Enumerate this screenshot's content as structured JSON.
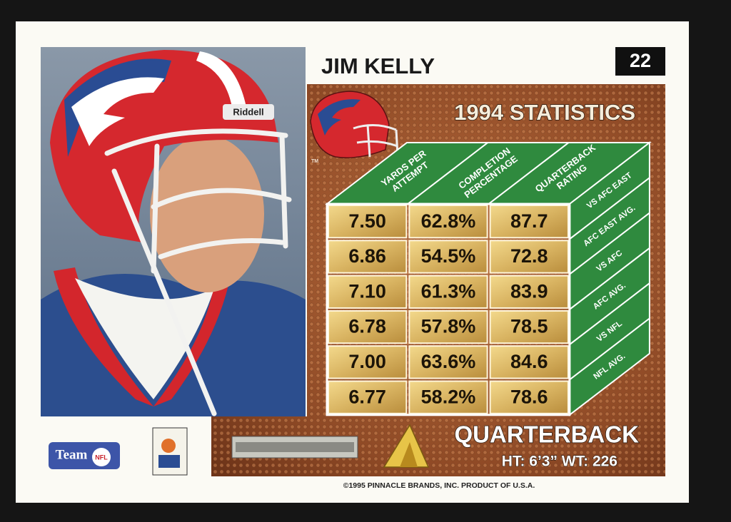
{
  "card": {
    "name": "JIM KELLY",
    "number": "22",
    "stats_title": "1994 STATISTICS",
    "helmet_brand": "Riddell",
    "tm": "TM",
    "position": "QUARTERBACK",
    "height_weight": "HT: 6’3” WT: 226",
    "copyright": "©1995 PINNACLE BRANDS, INC. PRODUCT OF U.S.A.",
    "team_logo": {
      "team": "Team",
      "league": "NFL"
    }
  },
  "table": {
    "columns": [
      [
        "YARDS PER",
        "ATTEMPT"
      ],
      [
        "COMPLETION",
        "PERCENTAGE"
      ],
      [
        "QUARTERBACK",
        "RATING"
      ]
    ],
    "rows": [
      {
        "label": "VS AFC EAST",
        "cells": [
          "7.50",
          "62.8%",
          "87.7"
        ]
      },
      {
        "label": "AFC EAST AVG.",
        "cells": [
          "6.86",
          "54.5%",
          "72.8"
        ]
      },
      {
        "label": "VS AFC",
        "cells": [
          "7.10",
          "61.3%",
          "83.9"
        ]
      },
      {
        "label": "AFC AVG.",
        "cells": [
          "6.78",
          "57.8%",
          "78.5"
        ]
      },
      {
        "label": "VS NFL",
        "cells": [
          "7.00",
          "63.6%",
          "84.6"
        ]
      },
      {
        "label": "NFL AVG.",
        "cells": [
          "6.77",
          "58.2%",
          "78.6"
        ]
      }
    ]
  }
}
